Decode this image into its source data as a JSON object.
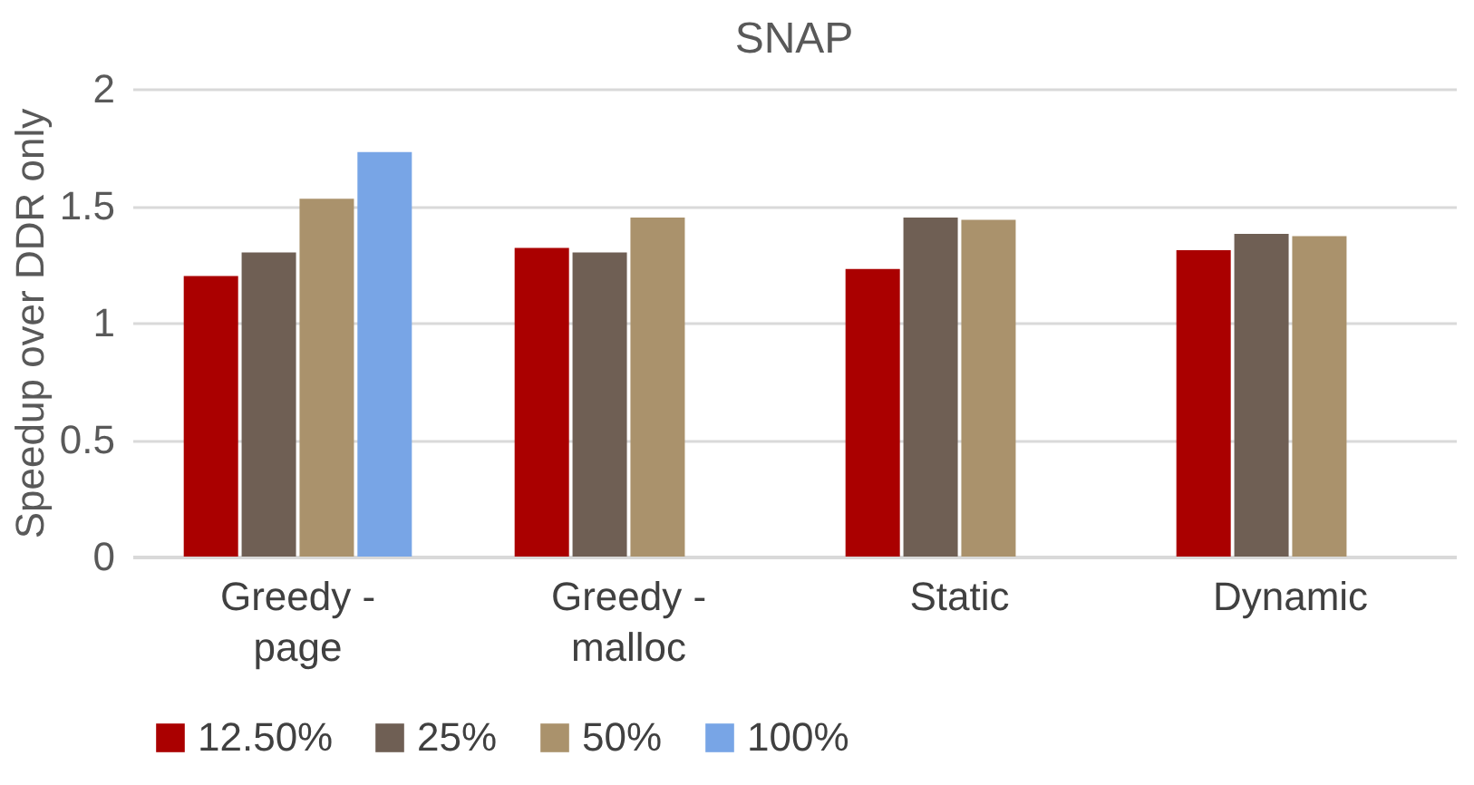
{
  "chart_data": {
    "type": "bar",
    "title": "SNAP",
    "ylabel": "Speedup over DDR only",
    "categories": [
      "Greedy - page",
      "Greedy - malloc",
      "Static",
      "Dynamic"
    ],
    "series": [
      {
        "name": "12.50%",
        "color": "#aa0000",
        "values": [
          1.2,
          1.32,
          1.23,
          1.31
        ]
      },
      {
        "name": "25%",
        "color": "#6f5f54",
        "values": [
          1.3,
          1.3,
          1.45,
          1.38
        ]
      },
      {
        "name": "50%",
        "color": "#aa926c",
        "values": [
          1.53,
          1.45,
          1.44,
          1.37
        ]
      },
      {
        "name": "100%",
        "color": "#78a5e6",
        "values": [
          1.73,
          null,
          null,
          null
        ]
      }
    ],
    "ylim": [
      0,
      2
    ],
    "yticks": [
      0,
      0.5,
      1,
      1.5,
      2
    ],
    "grid": "y",
    "legend": "bottom"
  }
}
